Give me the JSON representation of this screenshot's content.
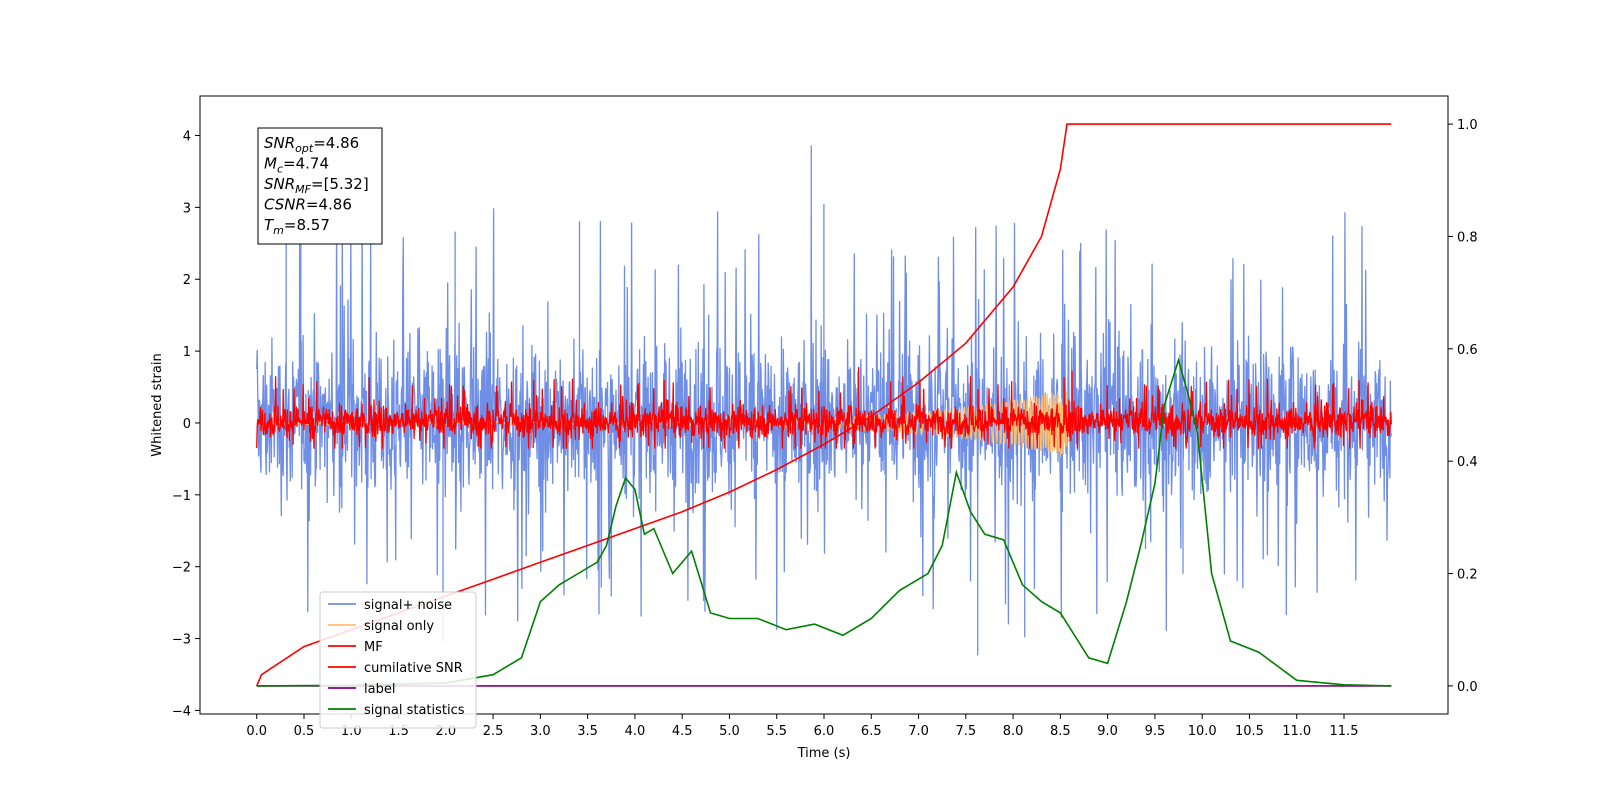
{
  "chart_data": {
    "type": "line",
    "xlabel": "Time (s)",
    "ylabel": "Whitened strain",
    "xlim": [
      -0.6,
      12.6
    ],
    "ylim_left": [
      -4.05,
      4.55
    ],
    "ylim_right": [
      -0.05,
      1.05
    ],
    "x_ticks": [
      "0.0",
      "0.5",
      "1.0",
      "1.5",
      "2.0",
      "2.5",
      "3.0",
      "3.5",
      "4.0",
      "4.5",
      "5.0",
      "5.5",
      "6.0",
      "6.5",
      "7.0",
      "7.5",
      "8.0",
      "8.5",
      "9.0",
      "9.5",
      "10.0",
      "10.5",
      "11.0",
      "11.5"
    ],
    "y_left_ticks": [
      "4",
      "3",
      "2",
      "1",
      "0",
      "−1",
      "−2",
      "−3",
      "−4"
    ],
    "y_right_ticks": [
      "1.0",
      "0.8",
      "0.6",
      "0.4",
      "0.2",
      "0.0"
    ],
    "legend_position": "lower-left",
    "annotation": [
      {
        "base": "SNR",
        "sub": "opt",
        "value": "=4.86"
      },
      {
        "base": "M",
        "sub": "c",
        "value": "=4.74"
      },
      {
        "base": "SNR",
        "sub": "MF",
        "value": "=[5.32]"
      },
      {
        "base": "CSNR",
        "sub": "",
        "value": "=4.86"
      },
      {
        "base": "T",
        "sub": "m",
        "value": "=8.57"
      }
    ],
    "series": [
      {
        "name": "signal+ noise",
        "color": "#6f8ee6",
        "axis": "left",
        "style": "noise",
        "t_range": [
          0,
          12
        ],
        "band": [
          -1.0,
          1.1
        ],
        "peak_max": 4.15,
        "peak_min": -3.65
      },
      {
        "name": "signal only",
        "color": "#ffbf6e",
        "axis": "left",
        "style": "chirp",
        "t_range": [
          0,
          8.57
        ],
        "amplitude_end": 0.45
      },
      {
        "name": "MF",
        "color": "#ff0000",
        "axis": "left",
        "style": "noise",
        "t_range": [
          0,
          12
        ],
        "band": [
          -0.2,
          0.25
        ],
        "peak_max": 0.85,
        "peak_min": -0.35
      },
      {
        "name": "cumilative SNR",
        "color": "#ff0000",
        "axis": "right",
        "style": "curve",
        "x": [
          0,
          0.05,
          0.5,
          1.0,
          1.5,
          2.0,
          2.5,
          3.0,
          3.5,
          4.0,
          4.5,
          5.0,
          5.5,
          6.0,
          6.5,
          7.0,
          7.5,
          8.0,
          8.3,
          8.5,
          8.57,
          12.0
        ],
        "y": [
          0,
          0.02,
          0.07,
          0.1,
          0.13,
          0.16,
          0.19,
          0.22,
          0.25,
          0.28,
          0.31,
          0.345,
          0.385,
          0.43,
          0.48,
          0.54,
          0.61,
          0.71,
          0.8,
          0.92,
          1.0,
          1.0
        ]
      },
      {
        "name": "label",
        "color": "#800080",
        "axis": "right",
        "style": "curve",
        "x": [
          0,
          12
        ],
        "y": [
          0,
          0
        ]
      },
      {
        "name": "signal statistics",
        "color": "#008000",
        "axis": "right",
        "style": "curve",
        "x": [
          0,
          1.0,
          2.0,
          2.5,
          2.8,
          3.0,
          3.2,
          3.4,
          3.6,
          3.7,
          3.8,
          3.9,
          4.0,
          4.1,
          4.2,
          4.4,
          4.6,
          4.8,
          5.0,
          5.3,
          5.6,
          5.9,
          6.2,
          6.5,
          6.8,
          7.1,
          7.25,
          7.4,
          7.55,
          7.7,
          7.9,
          8.1,
          8.3,
          8.5,
          8.8,
          9.0,
          9.2,
          9.35,
          9.5,
          9.6,
          9.75,
          9.85,
          9.95,
          10.1,
          10.3,
          10.6,
          11.0,
          11.5,
          12.0
        ],
        "y": [
          0,
          0.001,
          0.005,
          0.02,
          0.05,
          0.15,
          0.18,
          0.2,
          0.22,
          0.25,
          0.32,
          0.37,
          0.35,
          0.27,
          0.28,
          0.2,
          0.24,
          0.13,
          0.12,
          0.12,
          0.1,
          0.11,
          0.09,
          0.12,
          0.17,
          0.2,
          0.25,
          0.38,
          0.31,
          0.27,
          0.26,
          0.18,
          0.15,
          0.13,
          0.05,
          0.04,
          0.15,
          0.25,
          0.36,
          0.5,
          0.58,
          0.52,
          0.45,
          0.2,
          0.08,
          0.06,
          0.01,
          0.002,
          0
        ]
      }
    ]
  }
}
